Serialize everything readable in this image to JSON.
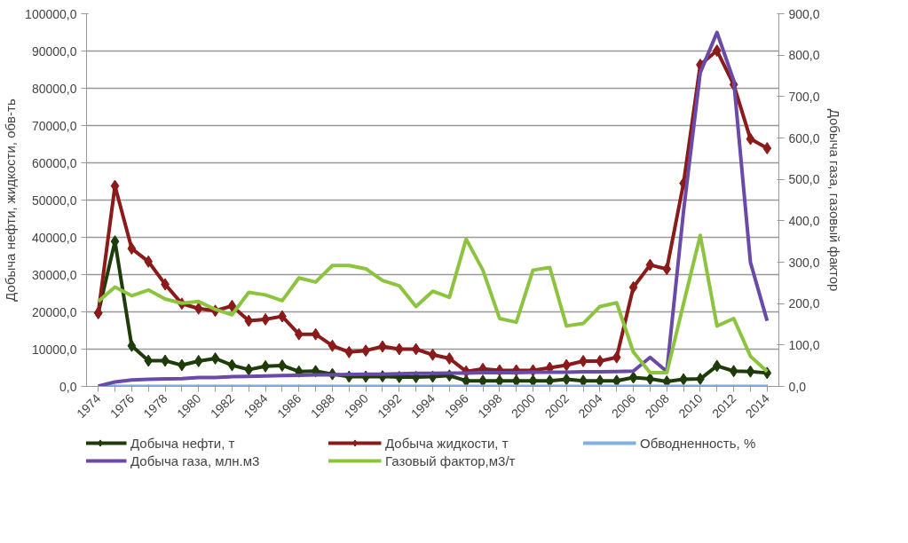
{
  "chart_data": {
    "type": "line",
    "ylabel": "Добыча нефти, жидкости, обв-ть",
    "y2label": "Добыча газа, газовый фактор",
    "categories": [
      "1974",
      null,
      "1976",
      null,
      "1978",
      null,
      "1980",
      null,
      "1982",
      null,
      "1984",
      null,
      "1986",
      null,
      "1988",
      null,
      "1990",
      null,
      "1992",
      null,
      "1994",
      null,
      "1996",
      null,
      "1998",
      null,
      "2000",
      null,
      "2002",
      null,
      "2004",
      null,
      "2006",
      null,
      "2008",
      null,
      "2010",
      null,
      "2012",
      null,
      "2014"
    ],
    "ylim": [
      0,
      100000
    ],
    "yticks": [
      {
        "value": 0,
        "label": "0,0"
      },
      {
        "value": 10000,
        "label": "10000,0"
      },
      {
        "value": 20000,
        "label": "20000,0"
      },
      {
        "value": 30000,
        "label": "30000,0"
      },
      {
        "value": 40000,
        "label": "40000,0"
      },
      {
        "value": 50000,
        "label": "50000,0"
      },
      {
        "value": 60000,
        "label": "60000,0"
      },
      {
        "value": 70000,
        "label": "70000,0"
      },
      {
        "value": 80000,
        "label": "80000,0"
      },
      {
        "value": 90000,
        "label": "90000,0"
      },
      {
        "value": 100000,
        "label": "100000,0"
      }
    ],
    "y2lim": [
      0,
      900
    ],
    "y2ticks": [
      {
        "value": 0,
        "label": "0,0"
      },
      {
        "value": 100,
        "label": "100,0"
      },
      {
        "value": 200,
        "label": "200,0"
      },
      {
        "value": 300,
        "label": "300,0"
      },
      {
        "value": 400,
        "label": "400,0"
      },
      {
        "value": 500,
        "label": "500,0"
      },
      {
        "value": 600,
        "label": "600,0"
      },
      {
        "value": 700,
        "label": "700,0"
      },
      {
        "value": 800,
        "label": "800,0"
      },
      {
        "value": 900,
        "label": "900,0"
      }
    ],
    "grid": "y",
    "legend": "bottom",
    "series": [
      {
        "name": "Добыча нефти, т",
        "color": "#1e3b0a",
        "marker": "diamond",
        "values": [
          19700,
          38900,
          10900,
          6900,
          6900,
          5700,
          6800,
          7500,
          5700,
          4500,
          5400,
          5600,
          4000,
          4100,
          3300,
          2600,
          2600,
          2700,
          2500,
          2500,
          2600,
          2900,
          1500,
          1500,
          1500,
          1500,
          1500,
          1500,
          1900,
          1500,
          1500,
          1500,
          2400,
          2000,
          1300,
          1900,
          2000,
          5500,
          4100,
          4000,
          3600
        ]
      },
      {
        "name": "Добыча жидкости, т",
        "color": "#8b1a1a",
        "marker": "diamond",
        "values": [
          19700,
          53800,
          37000,
          33500,
          27400,
          22200,
          20900,
          20300,
          21600,
          17600,
          18000,
          18800,
          14000,
          14000,
          10900,
          9200,
          9600,
          10700,
          10000,
          10000,
          8500,
          7500,
          4000,
          4700,
          4300,
          4300,
          4300,
          5000,
          5700,
          6800,
          6800,
          7800,
          26600,
          32600,
          31500,
          54500,
          86300,
          90100,
          81000,
          66400,
          63900
        ]
      },
      {
        "name": "Обводненность, %",
        "color": "#7fb0e0",
        "marker": "none",
        "values": [
          0,
          0,
          0,
          0,
          0,
          0,
          0,
          0,
          0,
          0,
          0,
          0,
          0,
          0,
          0,
          0,
          0,
          0,
          0,
          0,
          0,
          0,
          0,
          0,
          0,
          0,
          0,
          0,
          0,
          0,
          0,
          0,
          0,
          0,
          0,
          0,
          0,
          0,
          0,
          0,
          0
        ]
      },
      {
        "name": "Добыча газа, млн.м3",
        "color": "#6a4aa8",
        "marker": "none",
        "values": [
          100,
          1200,
          1700,
          1900,
          2000,
          2100,
          2400,
          2400,
          2600,
          2700,
          2800,
          2900,
          3000,
          3100,
          3100,
          3200,
          3300,
          3300,
          3400,
          3500,
          3500,
          3600,
          3600,
          3700,
          3700,
          3700,
          3800,
          3800,
          3800,
          3900,
          3900,
          4000,
          4100,
          7800,
          4000,
          47000,
          84200,
          95000,
          82100,
          33300,
          17600
        ]
      },
      {
        "name": "Газовый фактор,м3/т",
        "color": "#8cc43f",
        "marker": "none",
        "axis": "y2",
        "values": [
          205,
          240,
          219,
          233,
          211,
          201,
          205,
          186,
          173,
          227,
          221,
          207,
          262,
          252,
          292,
          292,
          284,
          256,
          243,
          193,
          230,
          215,
          356,
          281,
          164,
          155,
          281,
          287,
          146,
          152,
          193,
          202,
          83,
          33,
          33,
          200,
          365,
          146,
          164,
          73,
          36
        ]
      }
    ]
  }
}
